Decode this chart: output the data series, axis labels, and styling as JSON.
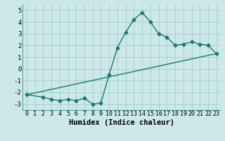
{
  "line1_x": [
    0,
    2,
    3,
    4,
    5,
    6,
    7,
    8,
    9,
    10,
    11,
    12,
    13,
    14,
    15,
    16,
    17,
    18,
    19,
    20,
    21,
    22,
    23
  ],
  "line1_y": [
    -2.2,
    -2.4,
    -2.6,
    -2.7,
    -2.6,
    -2.7,
    -2.5,
    -3.0,
    -2.9,
    -0.5,
    1.8,
    3.1,
    4.2,
    4.8,
    4.0,
    3.0,
    2.7,
    2.0,
    2.1,
    2.3,
    2.1,
    2.0,
    1.3
  ],
  "line2_x": [
    0,
    23
  ],
  "line2_y": [
    -2.2,
    1.3
  ],
  "color": "#1a7a6e",
  "bg_color": "#cce8e8",
  "grid_color": "#aacccc",
  "xlabel": "Humidex (Indice chaleur)",
  "ylim": [
    -3.5,
    5.5
  ],
  "xlim": [
    -0.5,
    23.5
  ],
  "yticks": [
    -3,
    -2,
    -1,
    0,
    1,
    2,
    3,
    4,
    5
  ],
  "xticks": [
    0,
    1,
    2,
    3,
    4,
    5,
    6,
    7,
    8,
    9,
    10,
    11,
    12,
    13,
    14,
    15,
    16,
    17,
    18,
    19,
    20,
    21,
    22,
    23
  ],
  "marker": "D",
  "markersize": 2.5,
  "linewidth": 1.0,
  "xlabel_fontsize": 7.5,
  "tick_fontsize": 6.0,
  "ytick_fontsize": 6.5
}
